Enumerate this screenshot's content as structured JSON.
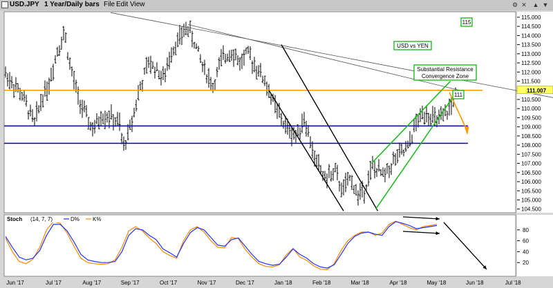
{
  "window": {
    "symbol": "USD.JPY",
    "period": "1 Year/Daily bars",
    "menu": [
      "File",
      "Edit",
      "View"
    ],
    "buttons": [
      "gear-icon",
      "close-icon",
      "up-arrow-icon",
      "down-arrow-icon"
    ]
  },
  "colors": {
    "bars": "#000000",
    "orange_line": "#ff9900",
    "blue_line": "#0000aa",
    "green_channel": "#22bb22",
    "d_line": "#2233ff",
    "k_line": "#ff8800",
    "panel_bg": "#ffffff",
    "last_price_box": "#ffff66"
  },
  "chart_data": [
    {
      "type": "ohlc",
      "title": "USD vs YEN",
      "x_labels": [
        "Jun '17",
        "Jul '17",
        "Aug '17",
        "Sep '17",
        "Oct '17",
        "Nov '17",
        "Dec '17",
        "Jan '18",
        "Feb '18",
        "Mar '18",
        "Apr '18",
        "May '18",
        "Jun '18",
        "Jul '18"
      ],
      "y_ticks": [
        104.5,
        105.0,
        105.5,
        106.0,
        106.5,
        107.0,
        107.5,
        108.0,
        108.5,
        109.0,
        109.5,
        110.0,
        110.5,
        111.0,
        111.5,
        112.0,
        112.5,
        113.0,
        113.5,
        114.0,
        114.5,
        115.0
      ],
      "y_tick_labels": [
        "104.500",
        "105.000",
        "105.500",
        "106.000",
        "106.500",
        "107.000",
        "107.500",
        "108.000",
        "108.500",
        "109.000",
        "109.500",
        "110.000",
        "110.500",
        "111.000",
        "111.500",
        "112.000",
        "112.500",
        "113.000",
        "113.500",
        "114.000",
        "114.500",
        "115.000"
      ],
      "ylim": [
        104.3,
        115.3
      ],
      "last_price": "111.007",
      "price_path": [
        [
          0.0,
          111.9
        ],
        [
          1.5,
          110.8
        ],
        [
          2.8,
          109.2
        ],
        [
          3.5,
          110.6
        ],
        [
          4.2,
          111.4
        ],
        [
          5.0,
          113.2
        ],
        [
          5.7,
          114.2
        ],
        [
          6.2,
          112.4
        ],
        [
          7.0,
          110.6
        ],
        [
          7.8,
          109.5
        ],
        [
          8.5,
          108.8
        ],
        [
          9.2,
          109.6
        ],
        [
          10.0,
          109.6
        ],
        [
          11.0,
          109.1
        ],
        [
          11.3,
          107.8
        ],
        [
          12.0,
          108.9
        ],
        [
          12.8,
          110.8
        ],
        [
          13.8,
          112.5
        ],
        [
          14.5,
          112.2
        ],
        [
          15.3,
          111.6
        ],
        [
          16.0,
          113.2
        ],
        [
          17.0,
          114.0
        ],
        [
          17.5,
          114.5
        ],
        [
          18.1,
          113.8
        ],
        [
          19.0,
          112.4
        ],
        [
          20.0,
          111.2
        ],
        [
          20.8,
          112.6
        ],
        [
          21.8,
          113.2
        ],
        [
          22.6,
          112.5
        ],
        [
          23.3,
          113.0
        ],
        [
          24.2,
          112.3
        ],
        [
          25.0,
          111.5
        ],
        [
          26.0,
          110.1
        ],
        [
          27.0,
          109.0
        ],
        [
          28.0,
          108.5
        ],
        [
          28.8,
          109.5
        ],
        [
          29.8,
          107.3
        ],
        [
          30.8,
          106.2
        ],
        [
          31.8,
          106.5
        ],
        [
          32.5,
          105.5
        ],
        [
          33.3,
          106.2
        ],
        [
          34.0,
          105.2
        ],
        [
          34.6,
          105.6
        ],
        [
          35.4,
          106.8
        ],
        [
          36.5,
          106.3
        ],
        [
          37.5,
          107.2
        ],
        [
          38.8,
          107.8
        ],
        [
          39.5,
          109.1
        ],
        [
          40.5,
          109.9
        ],
        [
          41.5,
          109.3
        ],
        [
          42.3,
          109.5
        ],
        [
          43.0,
          110.2
        ],
        [
          43.6,
          111.1
        ]
      ],
      "lines": [
        {
          "name": "horizontal-orange",
          "y": 111.0,
          "from_x": 0.0,
          "to_x": 46.0
        },
        {
          "name": "horizontal-blue-upper",
          "y": 109.05,
          "from_x": 0.0,
          "to_x": 44.6
        },
        {
          "name": "horizontal-blue-lower",
          "y": 108.1,
          "from_x": 0.0,
          "to_x": 44.6
        }
      ],
      "annotations": [
        {
          "text": "115",
          "boxed": true
        },
        {
          "text": "USD vs YEN",
          "boxed": true
        },
        {
          "text": "Substantial Resistance",
          "boxed": true
        },
        {
          "text": "Convergence Zone",
          "boxed": true
        },
        {
          "text": "111",
          "boxed": true
        }
      ]
    },
    {
      "type": "line",
      "title": "Stoch",
      "params": "(14, 7, 7)",
      "series": [
        {
          "name": "D%",
          "values": [
            68,
            48,
            30,
            25,
            28,
            42,
            70,
            90,
            90,
            78,
            58,
            35,
            25,
            22,
            20,
            20,
            22,
            40,
            70,
            82,
            80,
            70,
            62,
            45,
            38,
            30,
            55,
            75,
            84,
            80,
            66,
            52,
            50,
            62,
            65,
            50,
            35,
            22,
            18,
            15,
            17,
            30,
            45,
            35,
            28,
            18,
            12,
            10,
            16,
            35,
            55,
            68,
            74,
            76,
            72,
            70,
            86,
            95,
            92,
            88,
            82,
            84,
            86,
            88
          ]
        },
        {
          "name": "K%",
          "values": [
            65,
            40,
            22,
            18,
            26,
            48,
            80,
            95,
            92,
            74,
            50,
            28,
            20,
            18,
            17,
            18,
            25,
            48,
            78,
            86,
            78,
            65,
            55,
            40,
            33,
            28,
            60,
            80,
            86,
            76,
            60,
            48,
            47,
            66,
            64,
            44,
            30,
            18,
            13,
            12,
            16,
            34,
            46,
            30,
            24,
            14,
            8,
            7,
            18,
            42,
            60,
            70,
            76,
            76,
            70,
            74,
            90,
            96,
            90,
            84,
            80,
            86,
            88,
            90
          ]
        }
      ],
      "y_ticks": [
        20,
        40,
        60,
        80
      ],
      "y_tick_labels": [
        "20",
        "40",
        "60",
        "80"
      ],
      "ylim": [
        0,
        100
      ]
    }
  ]
}
